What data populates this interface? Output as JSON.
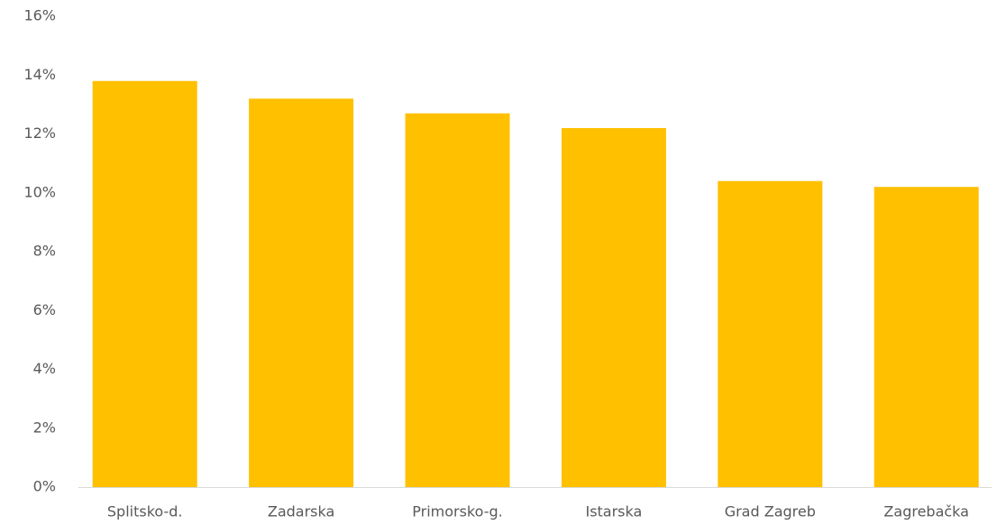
{
  "chart_data": {
    "type": "bar",
    "categories": [
      "Splitsko-d.",
      "Zadarska",
      "Primorsko-g.",
      "Istarska",
      "Grad Zagreb",
      "Zagrebačka"
    ],
    "values": [
      13.8,
      13.2,
      12.7,
      12.2,
      10.4,
      10.2
    ],
    "color": "#ffc000",
    "ylim": [
      0,
      16
    ],
    "yticks": [
      {
        "value": 0,
        "label": "0%"
      },
      {
        "value": 2,
        "label": "2%"
      },
      {
        "value": 4,
        "label": "4%"
      },
      {
        "value": 6,
        "label": "6%"
      },
      {
        "value": 8,
        "label": "8%"
      },
      {
        "value": 10,
        "label": "10%"
      },
      {
        "value": 12,
        "label": "12%"
      },
      {
        "value": 14,
        "label": "14%"
      },
      {
        "value": 16,
        "label": "16%"
      }
    ],
    "grid": false
  }
}
